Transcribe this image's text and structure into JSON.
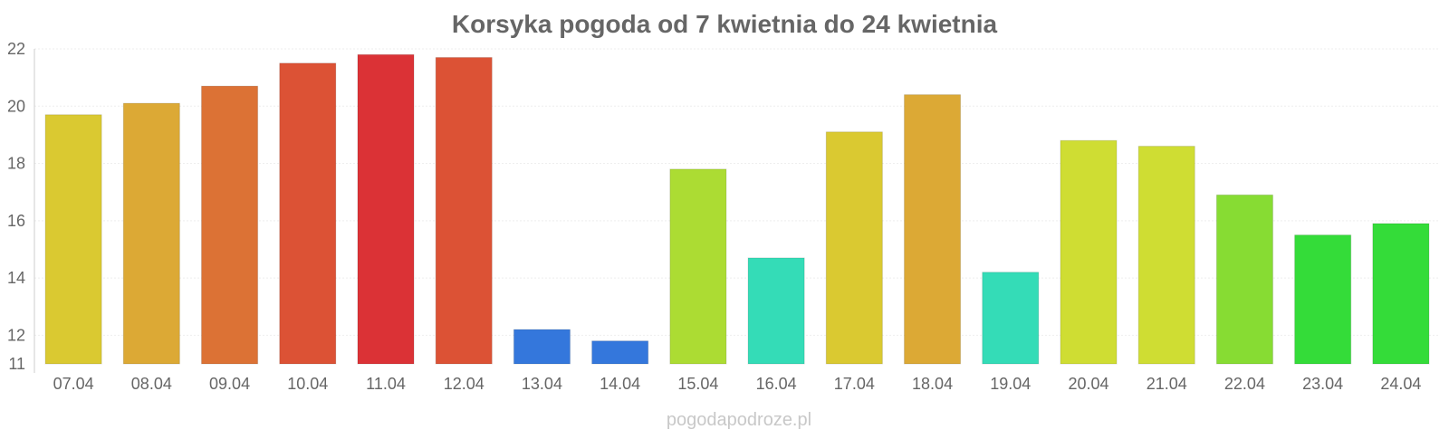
{
  "chart_data": {
    "type": "bar",
    "title": "Korsyka pogoda od 7 kwietnia do 24 kwietnia",
    "xlabel": "",
    "ylabel": "",
    "ylim": [
      11,
      22
    ],
    "yticks": [
      22,
      20,
      18,
      16,
      14,
      12,
      11
    ],
    "grid": true,
    "legend": "none",
    "categories": [
      "07.04",
      "08.04",
      "09.04",
      "10.04",
      "11.04",
      "12.04",
      "13.04",
      "14.04",
      "15.04",
      "16.04",
      "17.04",
      "18.04",
      "19.04",
      "20.04",
      "21.04",
      "22.04",
      "23.04",
      "24.04"
    ],
    "values": [
      19.7,
      20.1,
      20.7,
      21.5,
      21.8,
      21.7,
      12.2,
      11.8,
      17.8,
      14.7,
      19.1,
      20.4,
      14.2,
      18.8,
      18.6,
      16.9,
      15.5,
      15.9
    ],
    "colors": [
      "#dac931",
      "#dca935",
      "#dc7235",
      "#dc5235",
      "#db3236",
      "#dc5235",
      "#3477dc",
      "#3477dc",
      "#acdc33",
      "#34dcb7",
      "#dac931",
      "#dca935",
      "#34dcb7",
      "#cfdd33",
      "#cfdd33",
      "#87dc33",
      "#34dc39",
      "#34dc39"
    ]
  },
  "watermark": "pogodapodroze.pl"
}
